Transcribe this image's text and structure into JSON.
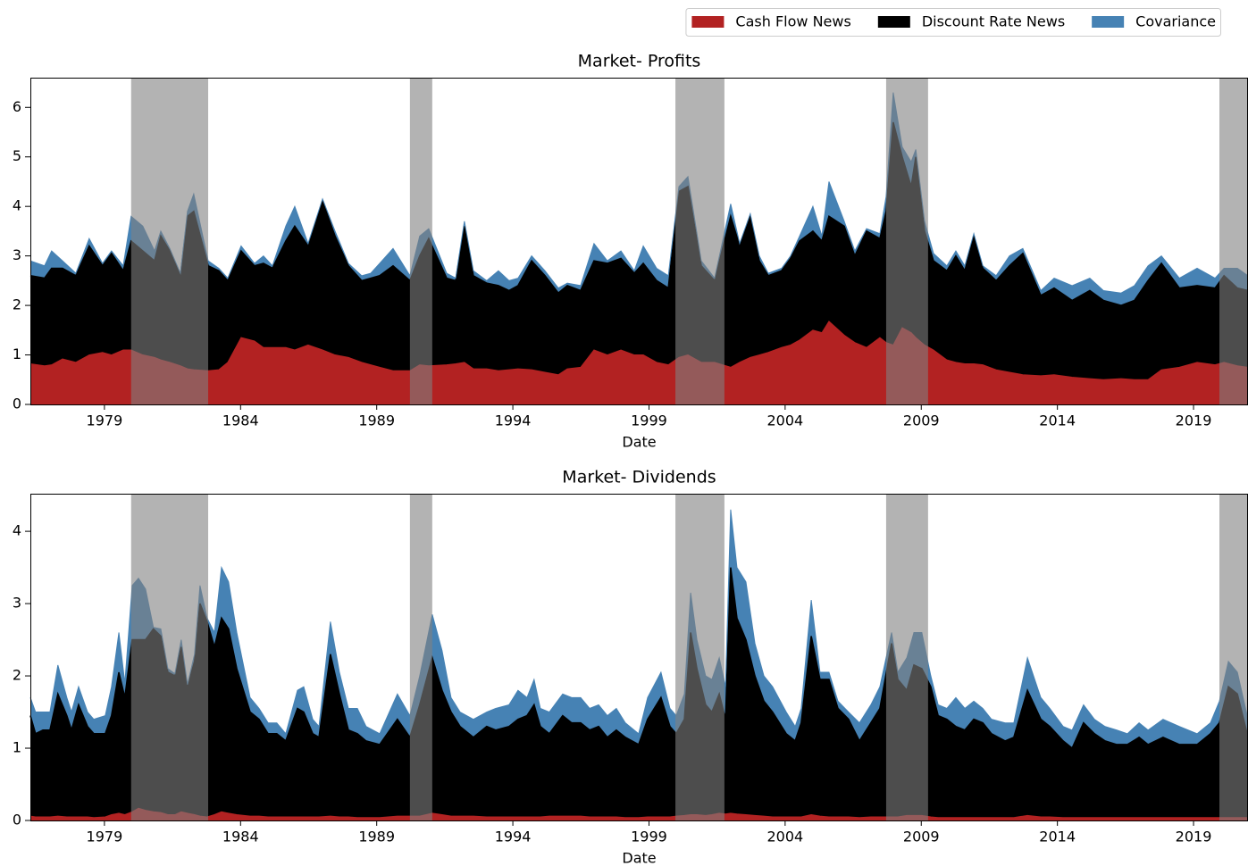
{
  "chart_data": [
    {
      "type": "area",
      "title": "Market- Profits",
      "xlabel": "Date",
      "legend": "upper right",
      "x": [
        1976.28,
        1976.8,
        1977.06,
        1977.46,
        1977.95,
        1978.44,
        1978.93,
        1979.26,
        1979.69,
        1979.98,
        1980.41,
        1980.84,
        1981.07,
        1981.4,
        1981.79,
        1982.05,
        1982.28,
        1982.81,
        1983.2,
        1983.53,
        1984.02,
        1984.51,
        1984.84,
        1985.17,
        1985.66,
        1985.99,
        1986.48,
        1987.01,
        1987.47,
        1987.96,
        1988.45,
        1988.78,
        1989.11,
        1989.6,
        1990.22,
        1990.58,
        1990.91,
        1991.57,
        1991.9,
        1992.22,
        1992.55,
        1993.04,
        1993.47,
        1993.86,
        1994.19,
        1994.69,
        1995.18,
        1995.67,
        1996.0,
        1996.49,
        1996.98,
        1997.47,
        1997.97,
        1998.46,
        1998.79,
        1999.28,
        1999.71,
        2000.1,
        2000.43,
        2000.92,
        2001.41,
        2002.0,
        2002.33,
        2002.72,
        2003.05,
        2003.38,
        2003.87,
        2004.2,
        2004.53,
        2005.02,
        2005.35,
        2005.61,
        2006.17,
        2006.56,
        2006.99,
        2007.48,
        2007.71,
        2007.97,
        2008.3,
        2008.63,
        2008.8,
        2009.12,
        2009.45,
        2009.94,
        2010.27,
        2010.6,
        2010.93,
        2011.26,
        2011.75,
        2012.24,
        2012.73,
        2013.39,
        2013.88,
        2014.54,
        2015.19,
        2015.69,
        2016.34,
        2016.83,
        2017.33,
        2017.82,
        2018.48,
        2019.13,
        2019.79,
        2020.12,
        2020.61,
        2021.0
      ],
      "series": [
        {
          "name": "Cash Flow News",
          "color": "#b22222",
          "values": [
            0.82,
            0.78,
            0.8,
            0.92,
            0.85,
            1.0,
            1.05,
            1.0,
            1.1,
            1.1,
            1.0,
            0.95,
            0.9,
            0.85,
            0.78,
            0.72,
            0.7,
            0.68,
            0.7,
            0.85,
            1.35,
            1.28,
            1.15,
            1.15,
            1.15,
            1.1,
            1.2,
            1.1,
            1.0,
            0.95,
            0.85,
            0.8,
            0.75,
            0.68,
            0.68,
            0.8,
            0.78,
            0.8,
            0.82,
            0.85,
            0.72,
            0.72,
            0.68,
            0.7,
            0.72,
            0.7,
            0.65,
            0.6,
            0.72,
            0.75,
            1.1,
            1.0,
            1.1,
            1.0,
            1.0,
            0.85,
            0.8,
            0.95,
            1.0,
            0.85,
            0.85,
            0.75,
            0.85,
            0.95,
            1.0,
            1.05,
            1.15,
            1.2,
            1.3,
            1.5,
            1.45,
            1.68,
            1.4,
            1.25,
            1.15,
            1.35,
            1.25,
            1.2,
            1.55,
            1.45,
            1.35,
            1.2,
            1.1,
            0.9,
            0.85,
            0.82,
            0.82,
            0.8,
            0.7,
            0.65,
            0.6,
            0.58,
            0.6,
            0.55,
            0.52,
            0.5,
            0.52,
            0.5,
            0.5,
            0.7,
            0.75,
            0.85,
            0.8,
            0.85,
            0.78,
            0.75
          ]
        },
        {
          "name": "Discount Rate News",
          "color": "#000000",
          "values": [
            1.78,
            1.77,
            1.95,
            1.83,
            1.75,
            2.2,
            1.75,
            2.05,
            1.6,
            2.2,
            2.1,
            1.95,
            2.5,
            2.25,
            1.82,
            3.08,
            3.2,
            2.12,
            2.0,
            1.65,
            1.75,
            1.52,
            1.7,
            1.6,
            2.15,
            2.5,
            2.0,
            3.0,
            2.4,
            1.85,
            1.65,
            1.75,
            1.85,
            2.12,
            1.82,
            2.2,
            2.57,
            1.75,
            1.68,
            2.75,
            1.88,
            1.73,
            1.72,
            1.6,
            1.68,
            2.2,
            1.95,
            1.65,
            1.68,
            1.55,
            1.8,
            1.85,
            1.85,
            1.65,
            1.85,
            1.65,
            1.55,
            3.35,
            3.4,
            1.95,
            1.65,
            3.05,
            2.35,
            2.85,
            1.9,
            1.55,
            1.55,
            1.75,
            2.0,
            2.0,
            1.85,
            2.12,
            2.2,
            1.75,
            2.35,
            2.0,
            2.65,
            4.5,
            3.45,
            2.95,
            3.65,
            2.3,
            1.8,
            1.8,
            2.15,
            1.88,
            2.58,
            1.95,
            1.8,
            2.15,
            2.45,
            1.62,
            1.75,
            1.55,
            1.78,
            1.6,
            1.48,
            1.6,
            2.0,
            2.15,
            1.6,
            1.55,
            1.55,
            1.75,
            1.57,
            1.55
          ]
        },
        {
          "name": "Covariance",
          "color": "#4682b4",
          "values": [
            0.3,
            0.25,
            0.35,
            0.15,
            0.05,
            0.15,
            0.05,
            0.05,
            0.1,
            0.5,
            0.5,
            0.2,
            0.1,
            0.05,
            0.05,
            0.1,
            0.35,
            0.1,
            0.05,
            0.05,
            0.1,
            0.05,
            0.15,
            0.05,
            0.3,
            0.4,
            0.05,
            0.05,
            0.1,
            0.05,
            0.1,
            0.1,
            0.25,
            0.35,
            0.1,
            0.4,
            0.2,
            0.1,
            0.05,
            0.1,
            0.1,
            0.05,
            0.3,
            0.2,
            0.15,
            0.1,
            0.1,
            0.1,
            0.05,
            0.1,
            0.35,
            0.05,
            0.15,
            0.05,
            0.35,
            0.25,
            0.25,
            0.1,
            0.2,
            0.1,
            0.05,
            0.25,
            0.05,
            0.05,
            0.1,
            0.05,
            0.05,
            0.05,
            0.1,
            0.5,
            0.1,
            0.7,
            0.1,
            0.1,
            0.05,
            0.1,
            0.3,
            0.6,
            0.2,
            0.5,
            0.15,
            0.2,
            0.15,
            0.1,
            0.1,
            0.1,
            0.05,
            0.05,
            0.1,
            0.2,
            0.1,
            0.1,
            0.2,
            0.3,
            0.25,
            0.2,
            0.25,
            0.3,
            0.3,
            0.15,
            0.2,
            0.35,
            0.2,
            0.15,
            0.4,
            0.3
          ]
        }
      ],
      "shaded": [
        [
          1979.98,
          1982.81
        ],
        [
          1990.22,
          1991.04
        ],
        [
          1999.97,
          2001.77
        ],
        [
          2007.71,
          2009.25
        ],
        [
          2019.95,
          2021.0
        ]
      ],
      "xlim": [
        1976.28,
        2021.0
      ],
      "xticks": [
        1979,
        1984,
        1989,
        1994,
        1999,
        2004,
        2009,
        2014,
        2019
      ],
      "ylim": [
        0,
        6.6
      ],
      "yticks": [
        0,
        1,
        2,
        3,
        4,
        5,
        6
      ]
    },
    {
      "type": "area",
      "title": "Market- Dividends",
      "xlabel": "Date",
      "x": [
        1976.28,
        1976.47,
        1976.74,
        1977.0,
        1977.29,
        1977.62,
        1977.79,
        1978.05,
        1978.38,
        1978.61,
        1979.03,
        1979.26,
        1979.53,
        1979.75,
        1980.02,
        1980.25,
        1980.51,
        1980.8,
        1981.07,
        1981.33,
        1981.59,
        1981.82,
        1982.05,
        1982.31,
        1982.51,
        1982.77,
        1983.04,
        1983.3,
        1983.56,
        1983.86,
        1984.35,
        1984.68,
        1985.01,
        1985.33,
        1985.66,
        1986.09,
        1986.32,
        1986.65,
        1986.88,
        1987.3,
        1987.63,
        1987.96,
        1988.29,
        1988.61,
        1989.11,
        1989.76,
        1990.22,
        1990.58,
        1991.04,
        1991.4,
        1991.73,
        1992.06,
        1992.55,
        1993.04,
        1993.37,
        1993.86,
        1994.19,
        1994.52,
        1994.78,
        1995.01,
        1995.34,
        1995.83,
        1996.16,
        1996.49,
        1996.82,
        1997.15,
        1997.47,
        1997.8,
        1998.13,
        1998.62,
        1998.95,
        1999.44,
        1999.77,
        2000.0,
        2000.3,
        2000.53,
        2000.76,
        2001.08,
        2001.31,
        2001.58,
        2001.81,
        2002.0,
        2002.23,
        2002.56,
        2002.89,
        2003.22,
        2003.54,
        2004.04,
        2004.37,
        2004.59,
        2004.96,
        2005.28,
        2005.61,
        2005.94,
        2006.33,
        2006.73,
        2007.15,
        2007.48,
        2007.91,
        2008.14,
        2008.47,
        2008.73,
        2009.02,
        2009.35,
        2009.62,
        2009.94,
        2010.27,
        2010.6,
        2010.93,
        2011.26,
        2011.58,
        2012.08,
        2012.4,
        2012.9,
        2013.39,
        2013.72,
        2014.21,
        2014.54,
        2014.96,
        2015.36,
        2015.75,
        2016.18,
        2016.57,
        2017.0,
        2017.33,
        2017.88,
        2018.48,
        2019.13,
        2019.62,
        2019.95,
        2020.28,
        2020.61,
        2021.0
      ],
      "series": [
        {
          "name": "Cash Flow News",
          "color": "#b22222",
          "values": [
            0.06,
            0.05,
            0.05,
            0.05,
            0.06,
            0.05,
            0.05,
            0.05,
            0.05,
            0.04,
            0.05,
            0.08,
            0.1,
            0.08,
            0.12,
            0.17,
            0.14,
            0.12,
            0.11,
            0.08,
            0.08,
            0.12,
            0.1,
            0.08,
            0.06,
            0.05,
            0.08,
            0.12,
            0.1,
            0.08,
            0.06,
            0.06,
            0.05,
            0.05,
            0.05,
            0.05,
            0.05,
            0.05,
            0.05,
            0.06,
            0.05,
            0.05,
            0.04,
            0.04,
            0.04,
            0.06,
            0.06,
            0.06,
            0.1,
            0.08,
            0.06,
            0.06,
            0.06,
            0.05,
            0.05,
            0.05,
            0.05,
            0.05,
            0.05,
            0.05,
            0.06,
            0.06,
            0.06,
            0.06,
            0.05,
            0.05,
            0.05,
            0.05,
            0.04,
            0.04,
            0.05,
            0.05,
            0.05,
            0.06,
            0.07,
            0.08,
            0.08,
            0.07,
            0.08,
            0.1,
            0.09,
            0.1,
            0.09,
            0.08,
            0.07,
            0.06,
            0.05,
            0.05,
            0.05,
            0.05,
            0.08,
            0.06,
            0.05,
            0.05,
            0.05,
            0.04,
            0.05,
            0.05,
            0.05,
            0.05,
            0.07,
            0.07,
            0.07,
            0.05,
            0.04,
            0.04,
            0.04,
            0.04,
            0.04,
            0.04,
            0.04,
            0.04,
            0.04,
            0.07,
            0.05,
            0.05,
            0.04,
            0.04,
            0.04,
            0.04,
            0.04,
            0.04,
            0.04,
            0.04,
            0.04,
            0.04,
            0.04,
            0.04,
            0.04,
            0.04,
            0.04,
            0.04,
            0.04
          ]
        },
        {
          "name": "Discount Rate News",
          "color": "#000000",
          "values": [
            1.39,
            1.15,
            1.2,
            1.2,
            1.69,
            1.4,
            1.2,
            1.55,
            1.25,
            1.16,
            1.15,
            1.37,
            1.95,
            1.62,
            2.38,
            2.33,
            2.36,
            2.53,
            2.44,
            1.97,
            1.92,
            2.28,
            1.75,
            2.12,
            2.94,
            2.7,
            2.32,
            2.68,
            2.55,
            2.02,
            1.44,
            1.34,
            1.15,
            1.15,
            1.05,
            1.5,
            1.45,
            1.15,
            1.1,
            2.24,
            1.7,
            1.2,
            1.16,
            1.06,
            1.01,
            1.34,
            1.09,
            1.54,
            2.15,
            1.72,
            1.44,
            1.24,
            1.09,
            1.25,
            1.2,
            1.25,
            1.35,
            1.4,
            1.55,
            1.25,
            1.14,
            1.39,
            1.29,
            1.29,
            1.2,
            1.25,
            1.1,
            1.2,
            1.11,
            1.01,
            1.35,
            1.65,
            1.25,
            1.14,
            1.33,
            2.52,
            2.02,
            1.53,
            1.42,
            1.65,
            1.31,
            3.4,
            2.71,
            2.42,
            1.93,
            1.59,
            1.45,
            1.15,
            1.05,
            1.3,
            2.47,
            1.89,
            1.9,
            1.5,
            1.35,
            1.06,
            1.3,
            1.5,
            2.4,
            1.9,
            1.73,
            2.08,
            2.03,
            1.8,
            1.41,
            1.36,
            1.26,
            1.21,
            1.36,
            1.31,
            1.16,
            1.06,
            1.11,
            1.73,
            1.35,
            1.25,
            1.06,
            0.96,
            1.31,
            1.16,
            1.06,
            1.01,
            1.01,
            1.11,
            1.01,
            1.11,
            1.01,
            1.01,
            1.16,
            1.31,
            1.81,
            1.71,
            1.11
          ]
        },
        {
          "name": "Covariance",
          "color": "#4682b4",
          "values": [
            0.25,
            0.3,
            0.25,
            0.25,
            0.4,
            0.25,
            0.25,
            0.25,
            0.2,
            0.2,
            0.25,
            0.4,
            0.55,
            0.2,
            0.75,
            0.85,
            0.7,
            0.02,
            0.1,
            0.05,
            0.03,
            0.1,
            0.03,
            0.1,
            0.25,
            0.05,
            0.2,
            0.7,
            0.65,
            0.5,
            0.2,
            0.15,
            0.15,
            0.15,
            0.1,
            0.25,
            0.35,
            0.2,
            0.15,
            0.45,
            0.3,
            0.3,
            0.35,
            0.2,
            0.15,
            0.35,
            0.3,
            0.4,
            0.6,
            0.55,
            0.2,
            0.2,
            0.25,
            0.2,
            0.3,
            0.3,
            0.4,
            0.25,
            0.35,
            0.25,
            0.3,
            0.3,
            0.35,
            0.35,
            0.3,
            0.3,
            0.3,
            0.3,
            0.2,
            0.15,
            0.3,
            0.35,
            0.25,
            0.25,
            0.35,
            0.55,
            0.4,
            0.4,
            0.45,
            0.5,
            0.45,
            0.8,
            0.7,
            0.8,
            0.45,
            0.35,
            0.35,
            0.3,
            0.2,
            0.2,
            0.5,
            0.1,
            0.1,
            0.1,
            0.1,
            0.25,
            0.25,
            0.3,
            0.15,
            0.1,
            0.45,
            0.45,
            0.5,
            0.15,
            0.15,
            0.15,
            0.4,
            0.3,
            0.25,
            0.2,
            0.2,
            0.25,
            0.2,
            0.45,
            0.3,
            0.25,
            0.2,
            0.25,
            0.25,
            0.2,
            0.2,
            0.2,
            0.15,
            0.2,
            0.2,
            0.25,
            0.25,
            0.15,
            0.15,
            0.3,
            0.35,
            0.3,
            0.25
          ]
        }
      ],
      "shaded": [
        [
          1979.98,
          1982.81
        ],
        [
          1990.22,
          1991.04
        ],
        [
          1999.97,
          2001.77
        ],
        [
          2007.71,
          2009.25
        ],
        [
          2019.95,
          2021.0
        ]
      ],
      "xlim": [
        1976.28,
        2021.0
      ],
      "xticks": [
        1979,
        1984,
        1989,
        1994,
        1999,
        2004,
        2009,
        2014,
        2019
      ],
      "ylim": [
        0,
        4.52
      ],
      "yticks": [
        0,
        1,
        2,
        3,
        4
      ]
    }
  ]
}
